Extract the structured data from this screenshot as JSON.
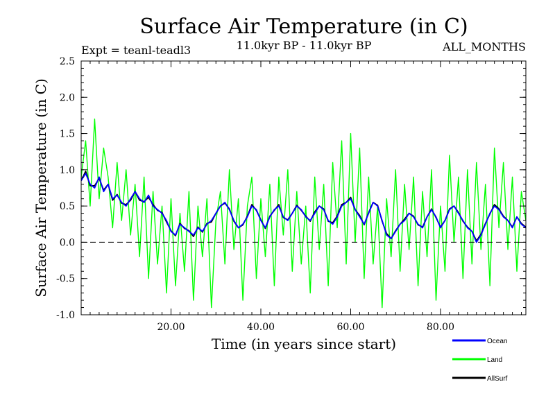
{
  "chart_data": {
    "type": "line",
    "title": "Surface Air Temperature (in C)",
    "subtitle_left": "Expt = teanl-teadl3",
    "subtitle_center": "11.0kyr BP - 11.0kyr BP",
    "subtitle_right": "ALL_MONTHS",
    "xlabel": "Time (in years since start)",
    "ylabel": "Surface Air Temperature (in C)",
    "xlim": [
      0,
      99
    ],
    "ylim": [
      -1.0,
      2.5
    ],
    "x_ticks": [
      20,
      40,
      60,
      80
    ],
    "x_tick_labels": [
      "20.00",
      "40.00",
      "60.00",
      "80.00"
    ],
    "y_ticks": [
      -1.0,
      -0.5,
      0.0,
      0.5,
      1.0,
      1.5,
      2.0,
      2.5
    ],
    "y_tick_labels": [
      "-1.0",
      "-0.5",
      "0.0",
      "0.5",
      "1.0",
      "1.5",
      "2.0",
      "2.5"
    ],
    "reference_line": 0.0,
    "legend_placement": "bottom-right, below plot",
    "series": [
      {
        "name": "Land",
        "color": "#00ff00",
        "x": [
          0,
          1,
          2,
          3,
          4,
          5,
          6,
          7,
          8,
          9,
          10,
          11,
          12,
          13,
          14,
          15,
          16,
          17,
          18,
          19,
          20,
          21,
          22,
          23,
          24,
          25,
          26,
          27,
          28,
          29,
          30,
          31,
          32,
          33,
          34,
          35,
          36,
          37,
          38,
          39,
          40,
          41,
          42,
          43,
          44,
          45,
          46,
          47,
          48,
          49,
          50,
          51,
          52,
          53,
          54,
          55,
          56,
          57,
          58,
          59,
          60,
          61,
          62,
          63,
          64,
          65,
          66,
          67,
          68,
          69,
          70,
          71,
          72,
          73,
          74,
          75,
          76,
          77,
          78,
          79,
          80,
          81,
          82,
          83,
          84,
          85,
          86,
          87,
          88,
          89,
          90,
          91,
          92,
          93,
          94,
          95,
          96,
          97,
          98,
          99
        ],
        "values": [
          0.9,
          1.4,
          0.5,
          1.7,
          0.6,
          1.3,
          0.9,
          0.2,
          1.1,
          0.3,
          1.0,
          0.1,
          0.8,
          -0.2,
          0.9,
          -0.5,
          0.7,
          -0.3,
          0.5,
          -0.7,
          0.6,
          -0.6,
          0.4,
          -0.4,
          0.7,
          -0.8,
          0.5,
          -0.2,
          0.6,
          -0.9,
          0.3,
          0.7,
          -0.3,
          1.0,
          -0.1,
          0.6,
          -0.8,
          0.5,
          0.9,
          -0.5,
          0.6,
          -0.2,
          0.8,
          -0.6,
          0.9,
          0.1,
          1.0,
          -0.4,
          0.7,
          -0.3,
          0.5,
          -0.7,
          0.9,
          -0.1,
          0.8,
          -0.6,
          1.1,
          0.2,
          1.4,
          -0.3,
          1.5,
          0.0,
          1.3,
          -0.5,
          0.9,
          -0.3,
          0.5,
          -0.9,
          0.6,
          -0.2,
          1.0,
          -0.4,
          0.8,
          -0.1,
          0.9,
          -0.6,
          0.7,
          -0.2,
          1.0,
          -0.8,
          0.5,
          -0.4,
          1.2,
          0.0,
          0.9,
          -0.5,
          1.0,
          -0.3,
          1.1,
          -0.1,
          0.8,
          -0.6,
          1.3,
          0.2,
          1.1,
          -0.1,
          0.9,
          -0.4,
          0.7,
          0.3
        ]
      },
      {
        "name": "Ocean",
        "color": "#0000ff",
        "x": [
          0,
          1,
          2,
          3,
          4,
          5,
          6,
          7,
          8,
          9,
          10,
          11,
          12,
          13,
          14,
          15,
          16,
          17,
          18,
          19,
          20,
          21,
          22,
          23,
          24,
          25,
          26,
          27,
          28,
          29,
          30,
          31,
          32,
          33,
          34,
          35,
          36,
          37,
          38,
          39,
          40,
          41,
          42,
          43,
          44,
          45,
          46,
          47,
          48,
          49,
          50,
          51,
          52,
          53,
          54,
          55,
          56,
          57,
          58,
          59,
          60,
          61,
          62,
          63,
          64,
          65,
          66,
          67,
          68,
          69,
          70,
          71,
          72,
          73,
          74,
          75,
          76,
          77,
          78,
          79,
          80,
          81,
          82,
          83,
          84,
          85,
          86,
          87,
          88,
          89,
          90,
          91,
          92,
          93,
          94,
          95,
          96,
          97,
          98,
          99
        ],
        "values": [
          0.85,
          0.95,
          0.8,
          0.75,
          0.9,
          0.7,
          0.8,
          0.6,
          0.65,
          0.55,
          0.5,
          0.6,
          0.7,
          0.6,
          0.55,
          0.65,
          0.5,
          0.45,
          0.4,
          0.3,
          0.15,
          0.1,
          0.25,
          0.2,
          0.15,
          0.1,
          0.2,
          0.15,
          0.25,
          0.3,
          0.4,
          0.5,
          0.55,
          0.45,
          0.3,
          0.2,
          0.25,
          0.35,
          0.5,
          0.45,
          0.3,
          0.2,
          0.35,
          0.45,
          0.5,
          0.35,
          0.3,
          0.4,
          0.5,
          0.45,
          0.35,
          0.3,
          0.4,
          0.5,
          0.45,
          0.3,
          0.25,
          0.35,
          0.5,
          0.55,
          0.6,
          0.45,
          0.35,
          0.25,
          0.4,
          0.55,
          0.5,
          0.3,
          0.1,
          0.05,
          0.15,
          0.25,
          0.3,
          0.4,
          0.35,
          0.25,
          0.2,
          0.35,
          0.45,
          0.35,
          0.2,
          0.3,
          0.45,
          0.5,
          0.4,
          0.3,
          0.2,
          0.15,
          0.0,
          0.1,
          0.25,
          0.4,
          0.5,
          0.45,
          0.35,
          0.3,
          0.2,
          0.35,
          0.25,
          0.2
        ]
      },
      {
        "name": "AllSurf",
        "color": "#000000",
        "x": [
          0,
          1,
          2,
          3,
          4,
          5,
          6,
          7,
          8,
          9,
          10,
          11,
          12,
          13,
          14,
          15,
          16,
          17,
          18,
          19,
          20,
          21,
          22,
          23,
          24,
          25,
          26,
          27,
          28,
          29,
          30,
          31,
          32,
          33,
          34,
          35,
          36,
          37,
          38,
          39,
          40,
          41,
          42,
          43,
          44,
          45,
          46,
          47,
          48,
          49,
          50,
          51,
          52,
          53,
          54,
          55,
          56,
          57,
          58,
          59,
          60,
          61,
          62,
          63,
          64,
          65,
          66,
          67,
          68,
          69,
          70,
          71,
          72,
          73,
          74,
          75,
          76,
          77,
          78,
          79,
          80,
          81,
          82,
          83,
          84,
          85,
          86,
          87,
          88,
          89,
          90,
          91,
          92,
          93,
          94,
          95,
          96,
          97,
          98,
          99
        ],
        "values": [
          0.85,
          0.98,
          0.78,
          0.78,
          0.88,
          0.72,
          0.8,
          0.58,
          0.66,
          0.54,
          0.52,
          0.58,
          0.7,
          0.58,
          0.56,
          0.62,
          0.52,
          0.44,
          0.41,
          0.28,
          0.16,
          0.09,
          0.26,
          0.19,
          0.16,
          0.08,
          0.21,
          0.14,
          0.26,
          0.28,
          0.4,
          0.5,
          0.54,
          0.46,
          0.29,
          0.2,
          0.24,
          0.36,
          0.52,
          0.44,
          0.31,
          0.19,
          0.36,
          0.44,
          0.52,
          0.34,
          0.31,
          0.4,
          0.51,
          0.44,
          0.36,
          0.29,
          0.42,
          0.5,
          0.46,
          0.29,
          0.27,
          0.36,
          0.52,
          0.55,
          0.62,
          0.45,
          0.37,
          0.24,
          0.41,
          0.55,
          0.51,
          0.29,
          0.12,
          0.05,
          0.16,
          0.25,
          0.32,
          0.4,
          0.36,
          0.24,
          0.21,
          0.35,
          0.46,
          0.34,
          0.21,
          0.3,
          0.46,
          0.5,
          0.41,
          0.29,
          0.21,
          0.15,
          0.02,
          0.11,
          0.26,
          0.39,
          0.52,
          0.46,
          0.36,
          0.3,
          0.21,
          0.35,
          0.26,
          0.21
        ]
      }
    ]
  }
}
